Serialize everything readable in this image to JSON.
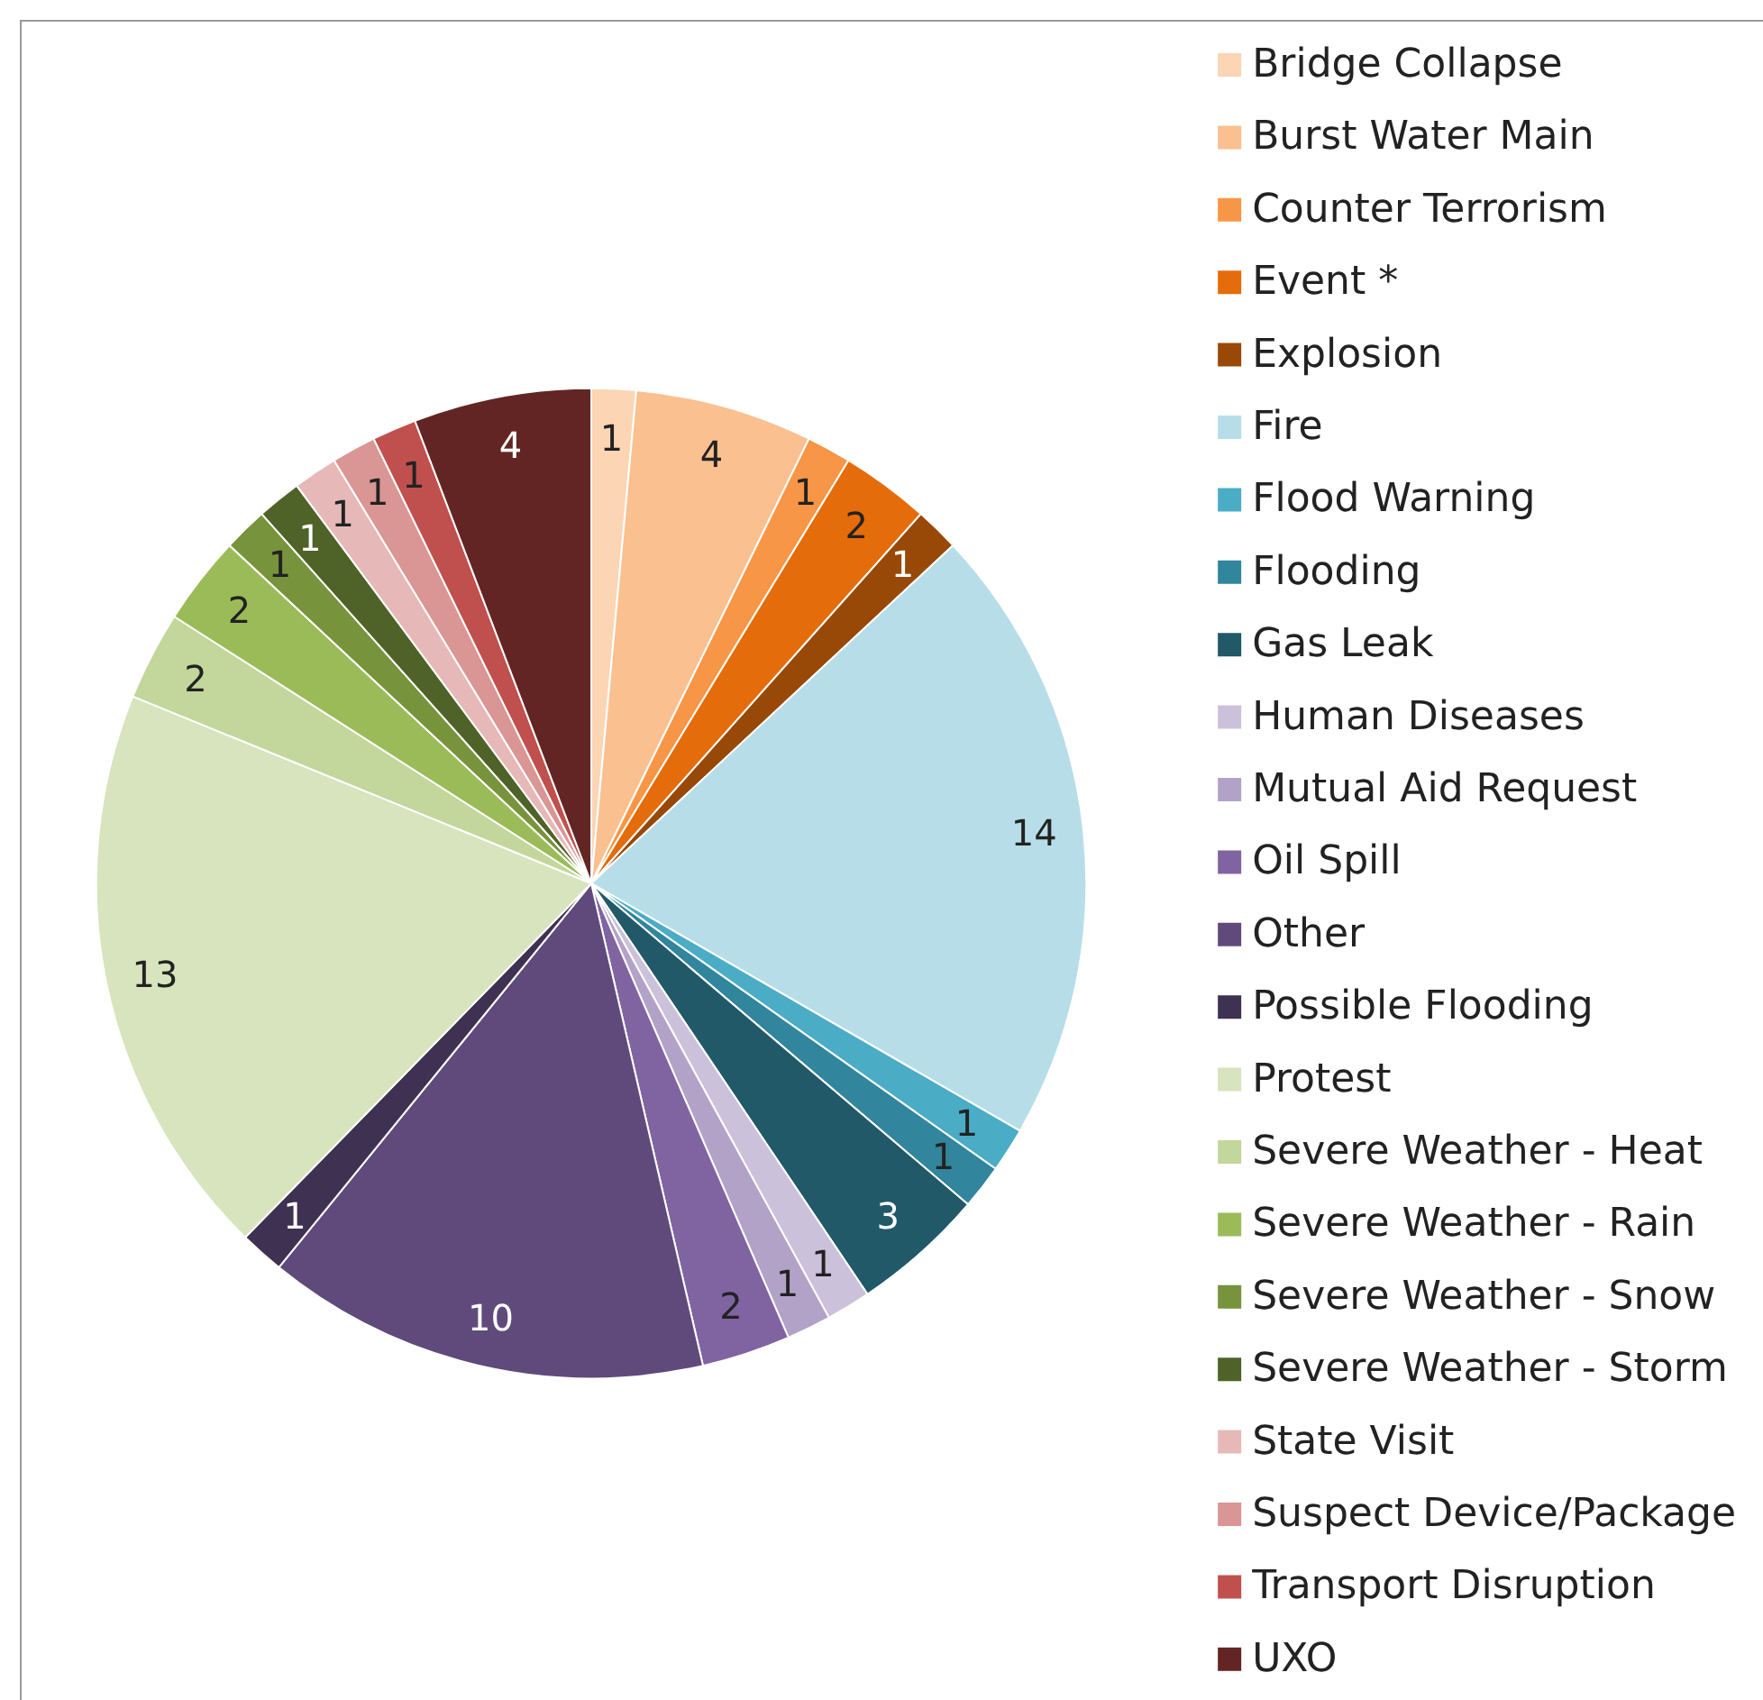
{
  "chart_data": {
    "type": "pie",
    "categories": [
      "Bridge Collapse",
      "Burst Water Main",
      "Counter Terrorism",
      "Event *",
      "Explosion",
      "Fire",
      "Flood Warning",
      "Flooding",
      "Gas Leak",
      "Human Diseases",
      "Mutual Aid Request",
      "Oil Spill",
      "Other",
      "Possible Flooding",
      "Protest",
      "Severe Weather - Heat",
      "Severe Weather - Rain",
      "Severe Weather - Snow",
      "Severe Weather - Storm",
      "State Visit",
      "Suspect Device/Package",
      "Transport Disruption",
      "UXO"
    ],
    "values": [
      1,
      4,
      1,
      2,
      1,
      14,
      1,
      1,
      3,
      1,
      1,
      2,
      10,
      1,
      13,
      2,
      2,
      1,
      1,
      1,
      1,
      1,
      4
    ],
    "colors": [
      "#fcd5b5",
      "#fac090",
      "#f79646",
      "#e46c0a",
      "#984807",
      "#b7dee8",
      "#4bacc6",
      "#31859c",
      "#215968",
      "#ccc1da",
      "#b3a2c7",
      "#8064a2",
      "#604a7b",
      "#3f3151",
      "#d7e4bd",
      "#c3d69b",
      "#9bbb59",
      "#77933c",
      "#4f6228",
      "#e6b9b8",
      "#d99694",
      "#c0504d",
      "#632523"
    ],
    "data_labels": true,
    "legend": "right"
  }
}
